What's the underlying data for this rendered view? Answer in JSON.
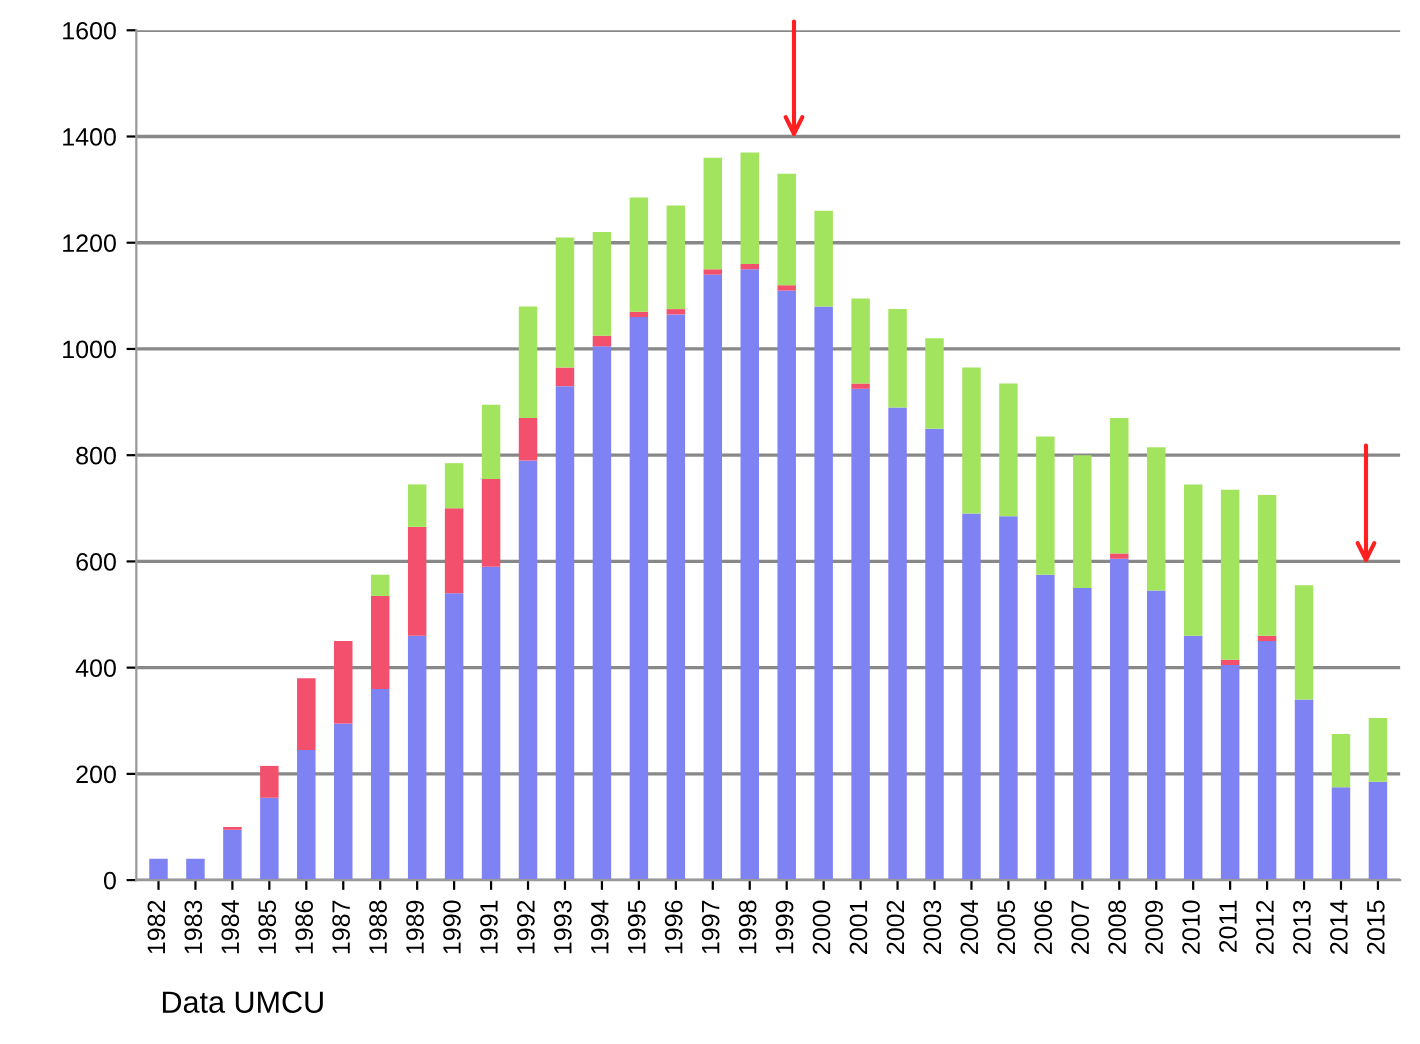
{
  "chart_data": {
    "type": "bar",
    "stacked": true,
    "categories": [
      "1982",
      "1983",
      "1984",
      "1985",
      "1986",
      "1987",
      "1988",
      "1989",
      "1990",
      "1991",
      "1992",
      "1993",
      "1994",
      "1995",
      "1996",
      "1997",
      "1998",
      "1999",
      "2000",
      "2001",
      "2002",
      "2003",
      "2004",
      "2005",
      "2006",
      "2007",
      "2008",
      "2009",
      "2010",
      "2011",
      "2012",
      "2013",
      "2014",
      "2015"
    ],
    "series": [
      {
        "color": "#7e82f2",
        "values": [
          40,
          40,
          95,
          155,
          245,
          295,
          360,
          460,
          540,
          590,
          790,
          930,
          1005,
          1060,
          1065,
          1140,
          1150,
          1110,
          1080,
          925,
          890,
          850,
          690,
          685,
          575,
          550,
          605,
          545,
          460,
          405,
          450,
          340,
          175,
          185
        ]
      },
      {
        "color": "#f2506c",
        "values": [
          0,
          0,
          5,
          60,
          135,
          155,
          175,
          205,
          160,
          165,
          80,
          35,
          20,
          10,
          10,
          10,
          10,
          10,
          0,
          10,
          0,
          0,
          0,
          0,
          0,
          0,
          10,
          0,
          0,
          10,
          10,
          0,
          0,
          0
        ]
      },
      {
        "color": "#a3e45e",
        "values": [
          0,
          0,
          0,
          0,
          0,
          0,
          40,
          80,
          85,
          140,
          210,
          245,
          195,
          215,
          195,
          210,
          210,
          210,
          180,
          160,
          185,
          170,
          275,
          250,
          260,
          250,
          255,
          270,
          285,
          320,
          265,
          215,
          100,
          120
        ]
      }
    ],
    "ylim": [
      0,
      1600
    ],
    "yticks": [
      0,
      200,
      400,
      600,
      800,
      1000,
      1200,
      1400,
      1600
    ],
    "grid": "y",
    "legend": false,
    "annotations": [
      "Data UMCU"
    ]
  }
}
